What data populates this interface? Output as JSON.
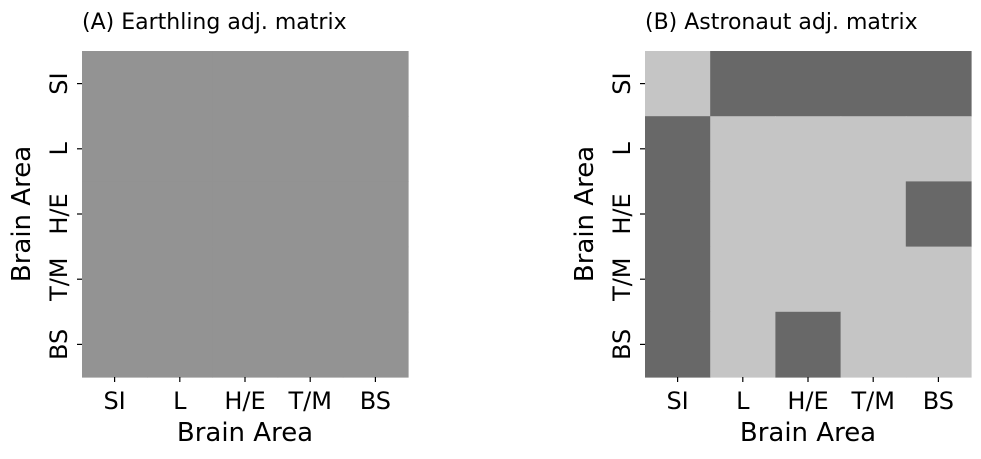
{
  "chart_data": [
    {
      "type": "heatmap",
      "title": "(A) Earthling adj. matrix",
      "xlabel": "Brain Area",
      "ylabel": "Brain Area",
      "x_categories": [
        "SI",
        "L",
        "H/E",
        "T/M",
        "BS"
      ],
      "y_categories": [
        "SI",
        "L",
        "H/E",
        "T/M",
        "BS"
      ],
      "values": [
        [
          1,
          1,
          1,
          1,
          1
        ],
        [
          1,
          1,
          1,
          1,
          1
        ],
        [
          1,
          1,
          1,
          1,
          1
        ],
        [
          1,
          1,
          1,
          1,
          1
        ],
        [
          1,
          1,
          1,
          1,
          1
        ]
      ],
      "colors": {
        "0": "#c5c5c5",
        "1": "#939393"
      },
      "grid": false,
      "legend": "none"
    },
    {
      "type": "heatmap",
      "title": "(B) Astronaut adj. matrix",
      "xlabel": "Brain Area",
      "ylabel": "Brain Area",
      "x_categories": [
        "SI",
        "L",
        "H/E",
        "T/M",
        "BS"
      ],
      "y_categories": [
        "SI",
        "L",
        "H/E",
        "T/M",
        "BS"
      ],
      "values": [
        [
          0,
          1,
          1,
          1,
          1
        ],
        [
          1,
          0,
          0,
          0,
          0
        ],
        [
          1,
          0,
          0,
          0,
          1
        ],
        [
          1,
          0,
          0,
          0,
          0
        ],
        [
          1,
          0,
          1,
          0,
          0
        ]
      ],
      "colors": {
        "0": "#c5c5c5",
        "1": "#686868"
      },
      "grid": false,
      "legend": "none"
    }
  ]
}
